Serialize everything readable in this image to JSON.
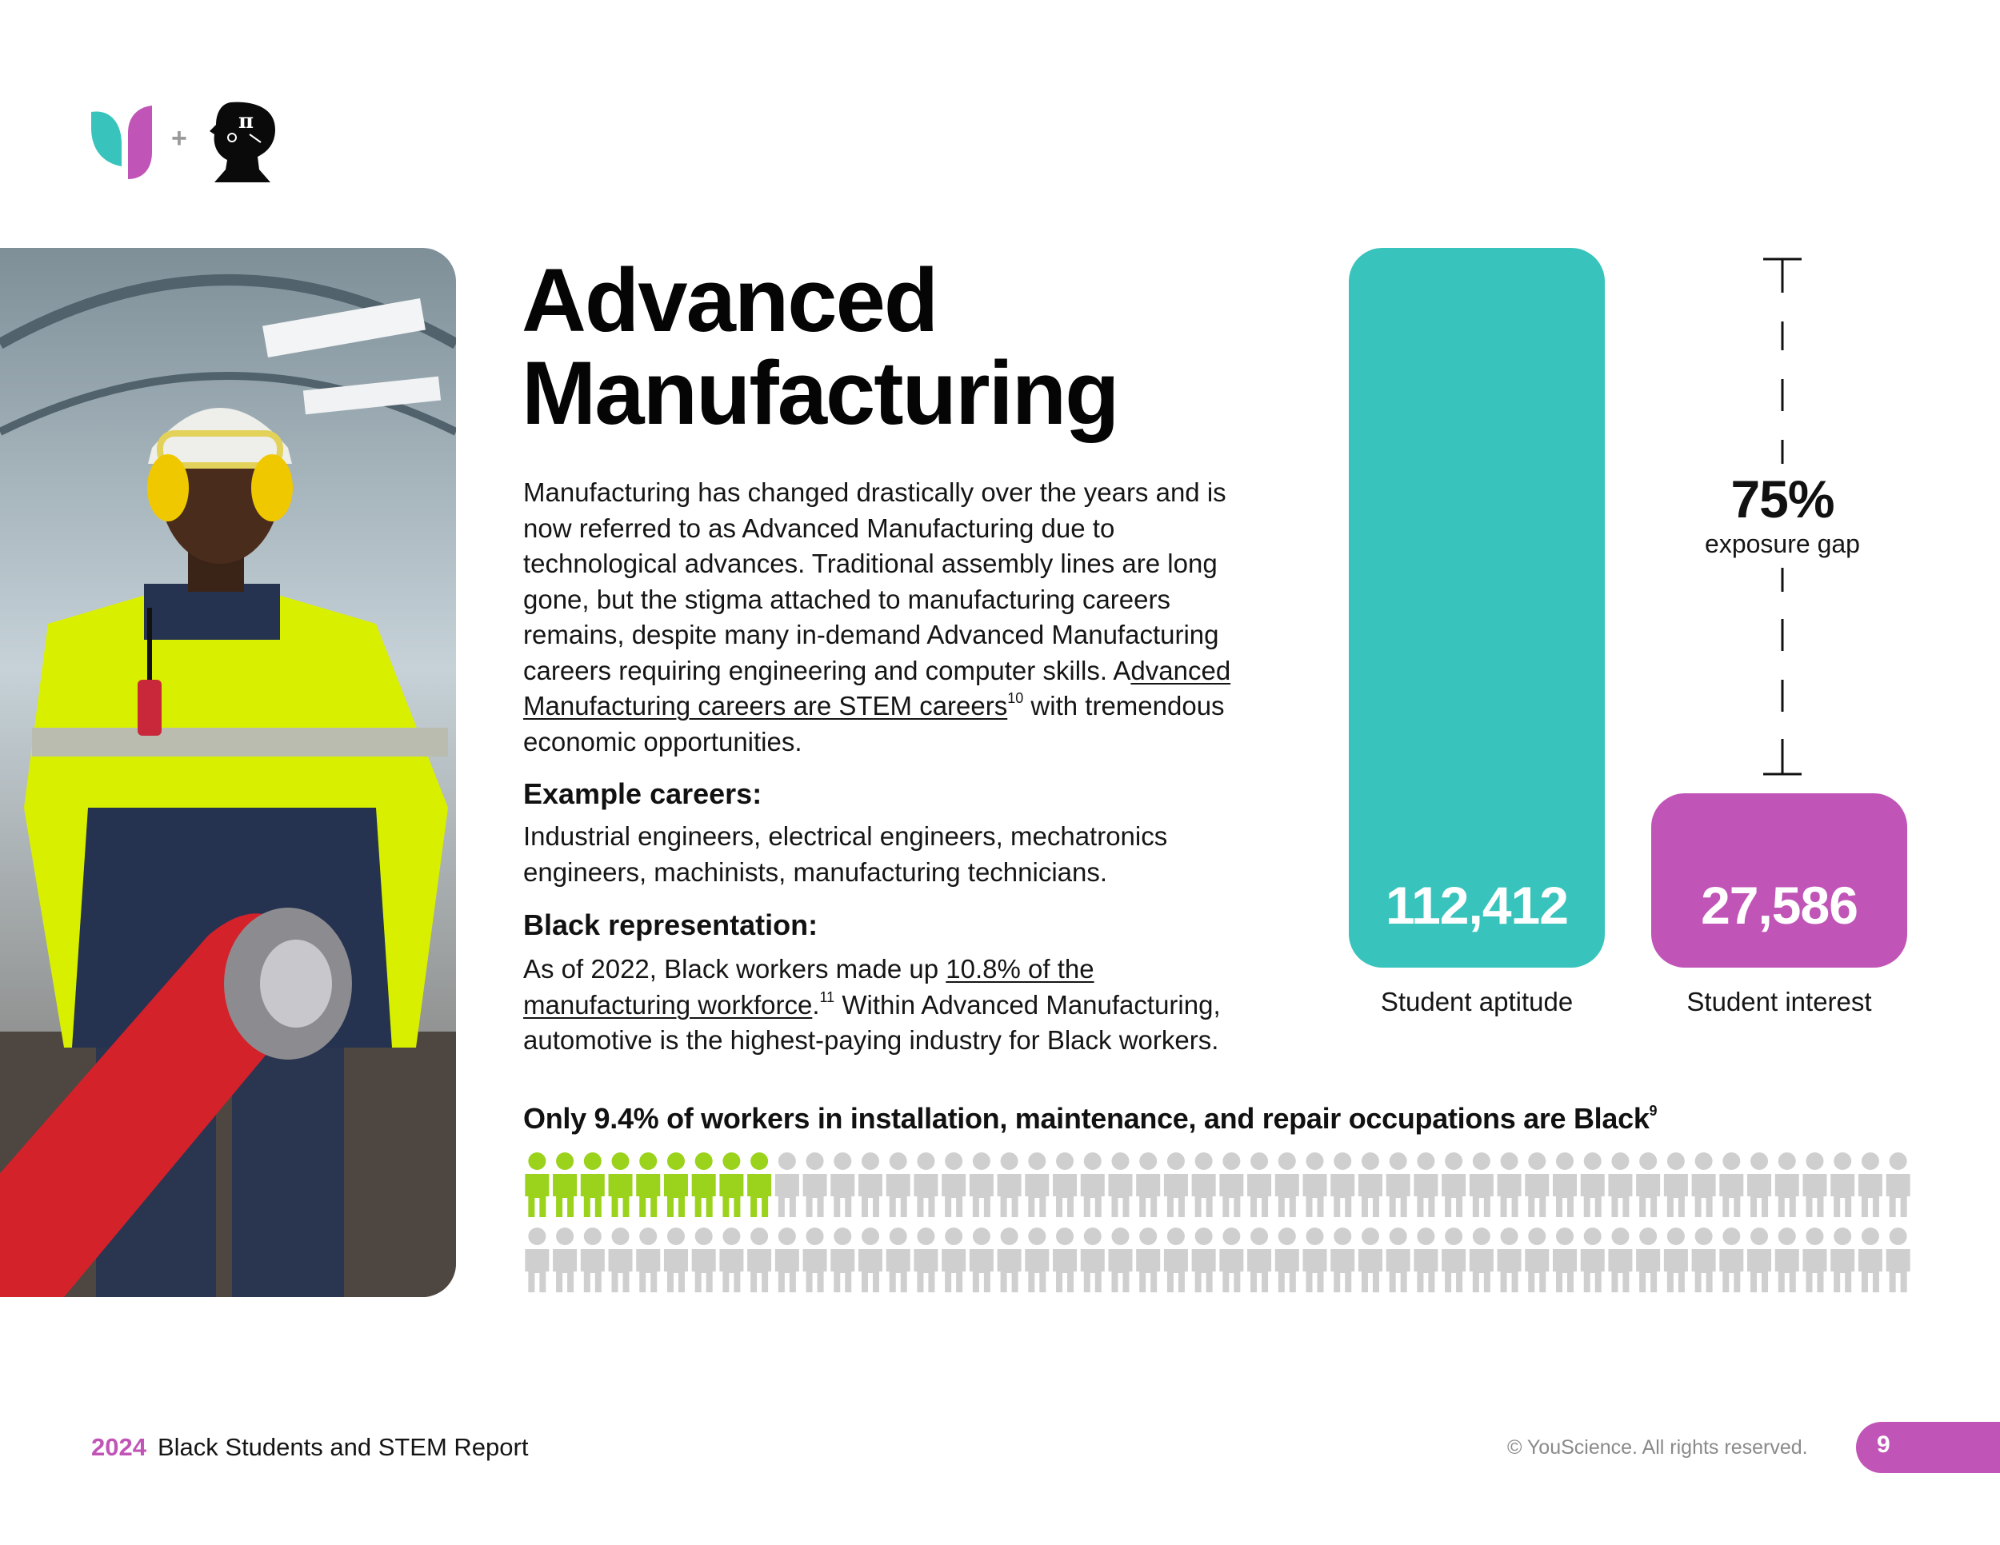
{
  "logos": {
    "plus_sign": "+",
    "left_logo": "youscience-leaf-logo",
    "right_logo": "woman-silhouette-pi-logo"
  },
  "photo": {
    "description_icon": "worker-in-safety-gear-photo"
  },
  "title": {
    "line1": "Advanced",
    "line2": "Manufacturing"
  },
  "intro": {
    "text_before": "Manufacturing has changed drastically over the years and is now referred to as Advanced Manufacturing due to technological advances. Traditional assembly lines are long gone, but the stigma attached to manufacturing careers remains, despite many in-demand Advanced Manufacturing careers requiring engineering and computer skills. A",
    "link": "dvanced Manufacturing careers are STEM careers",
    "footnote": "10",
    "text_after": " with tremendous economic opportunities."
  },
  "examples": {
    "heading": "Example careers:",
    "text": "Industrial engineers, electrical engineers, mechatronics engineers, machinists, manufacturing technicians."
  },
  "representation": {
    "heading": "Black representation:",
    "text_before": "As of 2022, Black workers made up ",
    "link": "10.8% of the manufacturing workforce",
    "text_mid": ".",
    "footnote": "11",
    "text_after": " Within Advanced Manufacturing, automotive is the highest-paying industry for Black workers."
  },
  "chart_data": {
    "type": "bar",
    "categories": [
      "Student aptitude",
      "Student interest"
    ],
    "values": [
      112412,
      27586
    ],
    "value_labels": [
      "112,412",
      "27,586"
    ],
    "colors": [
      "#38c4bc",
      "#c155b7"
    ],
    "gap_value": "75%",
    "gap_label": "exposure gap"
  },
  "stat": {
    "heading": "Only 9.4% of workers in installation, maintenance, and repair occupations are Black",
    "footnote": "9",
    "highlighted_count": 9,
    "total_count": 100,
    "highlight_color": "#9bd21c",
    "base_color": "#cfcfcf"
  },
  "footer": {
    "year": "2024",
    "report": "Black Students and STEM Report",
    "copyright": "© YouScience. All rights reserved.",
    "page": "9",
    "accent": "#c155b7"
  }
}
